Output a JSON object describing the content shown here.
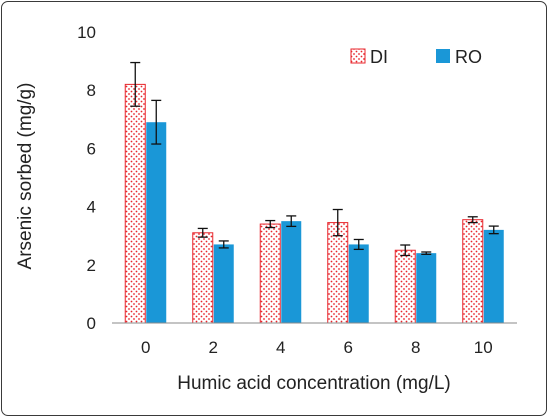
{
  "chart_data": {
    "type": "bar",
    "title": "",
    "xlabel": "Humic acid concentration (mg/L)",
    "ylabel": "Arsenic sorbed (mg/g)",
    "categories": [
      "0",
      "2",
      "4",
      "6",
      "8",
      "10"
    ],
    "ylim": [
      0,
      10
    ],
    "yticks": [
      "0",
      "2",
      "4",
      "6",
      "8",
      "10"
    ],
    "grid": false,
    "legend_position": "top-right",
    "series": [
      {
        "name": "DI",
        "values": [
          8.2,
          3.1,
          3.4,
          3.45,
          2.5,
          3.55
        ],
        "errors": [
          0.75,
          0.15,
          0.12,
          0.45,
          0.18,
          0.1
        ],
        "pattern": "dotted",
        "color": "#e8252b"
      },
      {
        "name": "RO",
        "values": [
          6.9,
          2.7,
          3.5,
          2.7,
          2.4,
          3.2
        ],
        "errors": [
          0.75,
          0.12,
          0.18,
          0.17,
          0.04,
          0.13
        ],
        "pattern": "solid",
        "color": "#1a97d7"
      }
    ]
  }
}
